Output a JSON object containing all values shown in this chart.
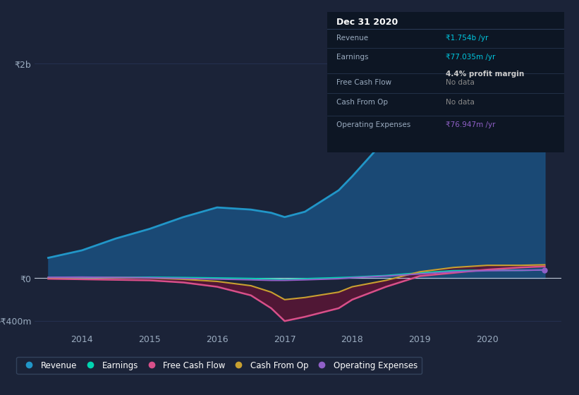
{
  "bg_color": "#1b2338",
  "plot_bg_color": "#1b2338",
  "grid_color": "#253050",
  "ylim": [
    -500000000,
    2300000000
  ],
  "years": [
    2013.5,
    2014.0,
    2014.5,
    2015.0,
    2015.5,
    2016.0,
    2016.5,
    2016.8,
    2017.0,
    2017.3,
    2017.8,
    2018.0,
    2018.5,
    2019.0,
    2019.5,
    2020.0,
    2020.5,
    2020.85
  ],
  "revenue": [
    190000000,
    260000000,
    370000000,
    460000000,
    570000000,
    660000000,
    640000000,
    610000000,
    570000000,
    620000000,
    820000000,
    950000000,
    1300000000,
    1720000000,
    2080000000,
    1870000000,
    1430000000,
    1754000000
  ],
  "earnings": [
    3000000,
    5000000,
    7000000,
    9000000,
    6000000,
    2000000,
    -3000000,
    -8000000,
    -12000000,
    -5000000,
    5000000,
    10000000,
    25000000,
    50000000,
    70000000,
    75000000,
    73000000,
    77035000
  ],
  "free_cash_flow": [
    -5000000,
    -10000000,
    -15000000,
    -20000000,
    -40000000,
    -80000000,
    -160000000,
    -280000000,
    -400000000,
    -360000000,
    -280000000,
    -200000000,
    -80000000,
    20000000,
    50000000,
    80000000,
    100000000,
    110000000
  ],
  "cash_from_op": [
    5000000,
    8000000,
    5000000,
    2000000,
    -10000000,
    -30000000,
    -70000000,
    -130000000,
    -200000000,
    -180000000,
    -130000000,
    -80000000,
    -20000000,
    60000000,
    100000000,
    120000000,
    120000000,
    125000000
  ],
  "operating_expenses": [
    8000000,
    10000000,
    7000000,
    4000000,
    -2000000,
    -8000000,
    -15000000,
    -20000000,
    -20000000,
    -15000000,
    -5000000,
    5000000,
    20000000,
    40000000,
    60000000,
    70000000,
    73000000,
    76947000
  ],
  "revenue_color": "#2196c8",
  "revenue_fill_color": "#1a5080",
  "earnings_color": "#00d4b0",
  "free_cash_flow_color": "#d8508a",
  "cash_from_op_color": "#c8a030",
  "operating_expenses_color": "#9060c8",
  "neg_fill_color": "#5a1535",
  "line_width": 2.0,
  "legend_items": [
    "Revenue",
    "Earnings",
    "Free Cash Flow",
    "Cash From Op",
    "Operating Expenses"
  ],
  "legend_colors": [
    "#2196c8",
    "#00d4b0",
    "#d8508a",
    "#c8a030",
    "#9060c8"
  ],
  "xticks": [
    2014,
    2015,
    2016,
    2017,
    2018,
    2019,
    2020
  ],
  "xtick_labels": [
    "2014",
    "2015",
    "2016",
    "2017",
    "2018",
    "2019",
    "2020"
  ],
  "ytick_vals": [
    -400000000,
    0,
    2000000000
  ],
  "ytick_labels": [
    "-₹400m",
    "₹0",
    "₹2b"
  ],
  "info_box": {
    "title": "Dec 31 2020",
    "rows": [
      {
        "label": "Revenue",
        "value": "₹1.754b /yr",
        "value_color": "#00c8e0"
      },
      {
        "label": "Earnings",
        "value": "₹77.035m /yr",
        "value_color": "#00c8e0",
        "sub": "4.4% profit margin",
        "sub_color": "#cccccc"
      },
      {
        "label": "Free Cash Flow",
        "value": "No data",
        "value_color": "#888888"
      },
      {
        "label": "Cash From Op",
        "value": "No data",
        "value_color": "#888888"
      },
      {
        "label": "Operating Expenses",
        "value": "₹76.947m /yr",
        "value_color": "#9060c8"
      }
    ]
  }
}
